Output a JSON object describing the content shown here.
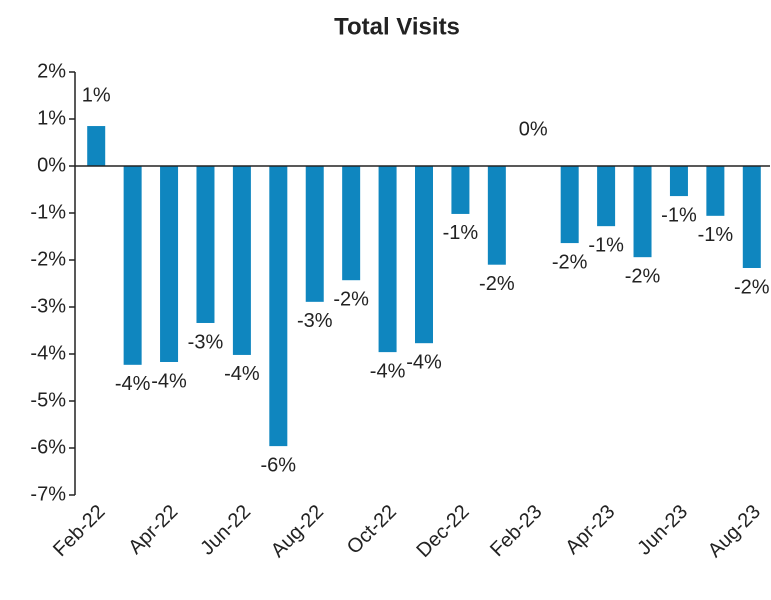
{
  "chart_data": {
    "type": "bar",
    "title": "Total Visits",
    "categories": [
      "Feb-22",
      null,
      "Apr-22",
      null,
      "Jun-22",
      null,
      "Aug-22",
      null,
      "Oct-22",
      null,
      "Dec-22",
      null,
      "Feb-23",
      null,
      "Apr-23",
      null,
      "Jun-23",
      null,
      "Aug-23"
    ],
    "values": [
      0.85,
      -4.23,
      -4.17,
      -3.34,
      -4.02,
      -5.96,
      -2.89,
      -2.43,
      -3.96,
      -3.77,
      -1.02,
      -2.1,
      0,
      -1.64,
      -1.28,
      -1.94,
      -0.64,
      -1.06,
      -2.17
    ],
    "value_labels": [
      "1%",
      "-4%",
      "-4%",
      "-3%",
      "-4%",
      "-6%",
      "-3%",
      "-2%",
      "-4%",
      "-4%",
      "-1%",
      "-2%",
      "0%",
      "-2%",
      "-1%",
      "-2%",
      "-1%",
      "-1%",
      "-2%"
    ],
    "color": "#0f86bf",
    "ylim": [
      -7,
      2
    ],
    "yticks": [
      {
        "value": 2,
        "label": "2%"
      },
      {
        "value": 1,
        "label": "1%"
      },
      {
        "value": 0,
        "label": "0%"
      },
      {
        "value": -1,
        "label": "-1%"
      },
      {
        "value": -2,
        "label": "-2%"
      },
      {
        "value": -3,
        "label": "-3%"
      },
      {
        "value": -4,
        "label": "-4%"
      },
      {
        "value": -5,
        "label": "-5%"
      },
      {
        "value": -6,
        "label": "-6%"
      },
      {
        "value": -7,
        "label": "-7%"
      }
    ],
    "grid": false
  }
}
